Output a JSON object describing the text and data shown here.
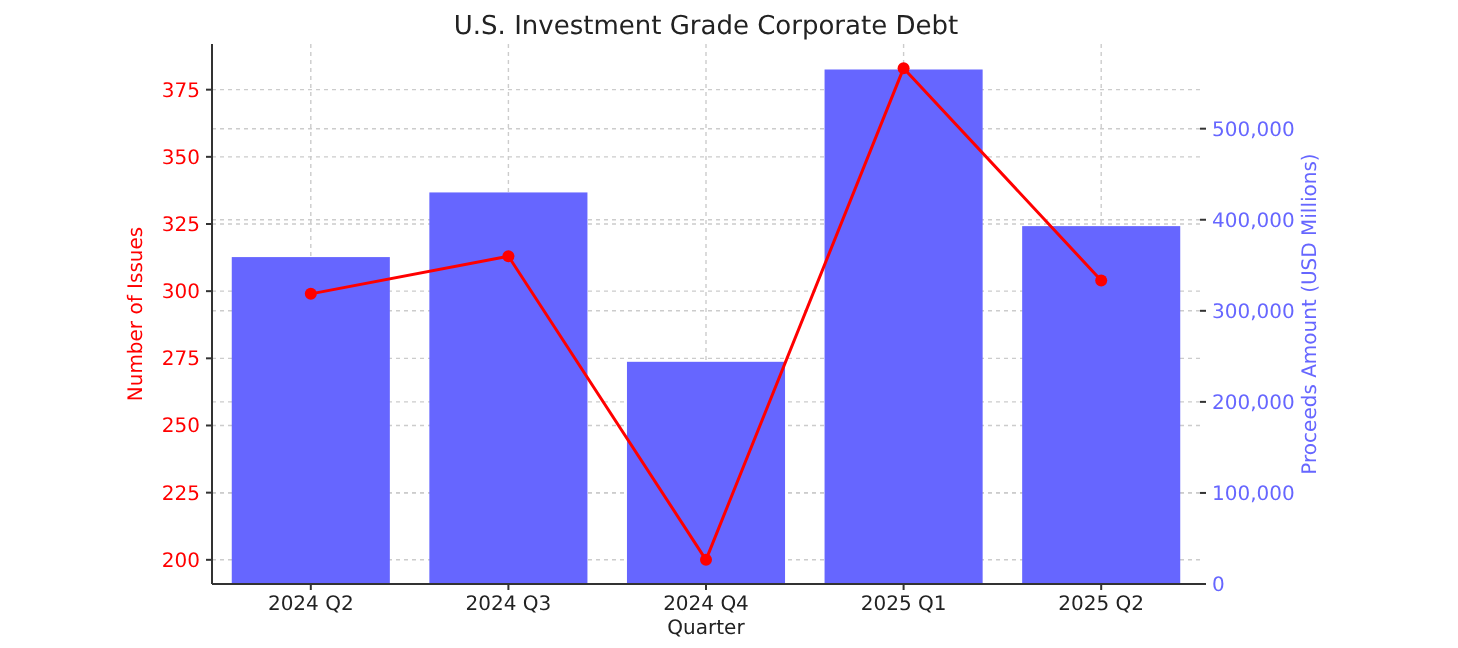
{
  "chart_data": {
    "type": "bar",
    "title": "U.S. Investment Grade Corporate Debt",
    "xlabel": "Quarter",
    "ylabel": "Number of Issues",
    "y2label": "Proceeds Amount (USD Millions)",
    "categories": [
      "2024 Q2",
      "2024 Q3",
      "2024 Q4",
      "2025 Q1",
      "2025 Q2"
    ],
    "series": [
      {
        "axis": "y2",
        "color": "#6666ff",
        "values": [
          359000,
          430000,
          244000,
          565000,
          393000
        ]
      },
      {
        "type": "line",
        "axis": "y",
        "color": "#ff0000",
        "marker": "circle",
        "values": [
          299,
          313,
          200,
          383,
          304
        ]
      }
    ],
    "ylim": [
      191,
      392
    ],
    "yticks": [
      200,
      225,
      250,
      275,
      300,
      325,
      350,
      375
    ],
    "y2lim": [
      0,
      593000
    ],
    "y2ticks": [
      0,
      {
        "value": 100000,
        "label": "100,000"
      },
      {
        "value": 200000,
        "label": "200,000"
      },
      {
        "value": 300000,
        "label": "300,000"
      },
      {
        "value": 400000,
        "label": "400,000"
      },
      {
        "value": 500000,
        "label": "500,000"
      }
    ],
    "grid": true
  }
}
